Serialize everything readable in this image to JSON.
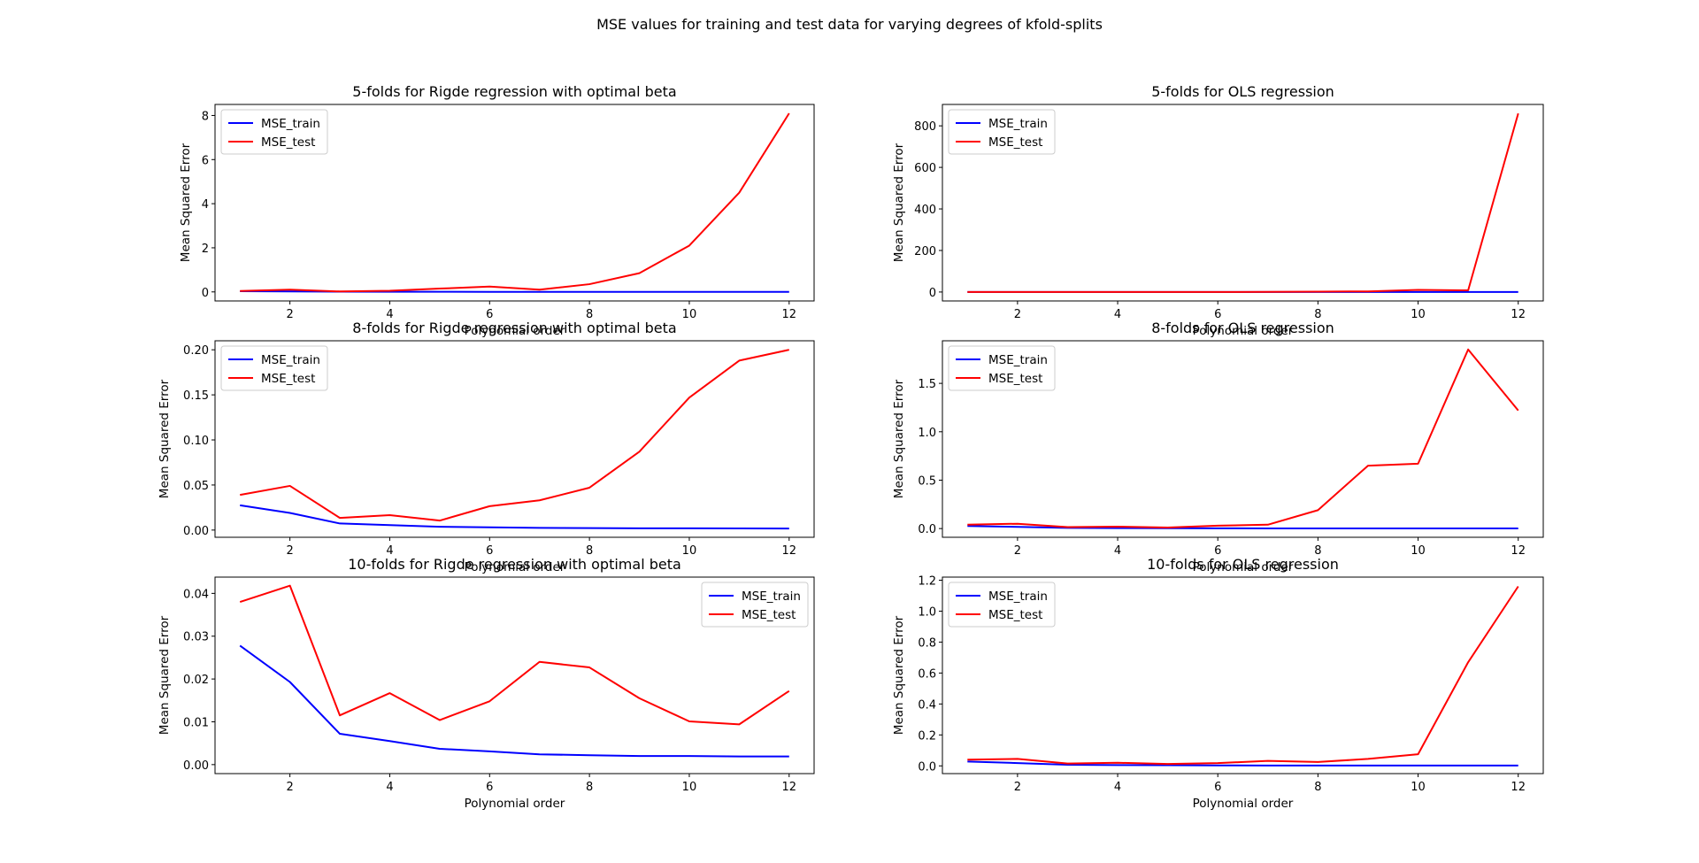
{
  "figure": {
    "suptitle": "MSE values for training and test data for varying degrees of kfold-splits"
  },
  "colors": {
    "train": "#0000ff",
    "test": "#ff0000"
  },
  "chart_data": [
    {
      "type": "line",
      "title": "5-folds for Rigde regression with optimal beta",
      "xlabel": "Polynomial order",
      "ylabel": "Mean Squared Error",
      "x": [
        1,
        2,
        3,
        4,
        5,
        6,
        7,
        8,
        9,
        10,
        11,
        12
      ],
      "xlim": [
        0.5,
        12.5
      ],
      "ylim": [
        -0.41,
        8.5
      ],
      "xticks": [
        2,
        4,
        6,
        8,
        10,
        12
      ],
      "yticks": [
        0,
        2,
        4,
        6,
        8
      ],
      "ytick_labels": [
        "0",
        "2",
        "4",
        "6",
        "8"
      ],
      "legend_loc": "upper left",
      "series": [
        {
          "name": "MSE_train",
          "color": "#0000ff",
          "values": [
            0.03,
            0.02,
            0.01,
            0.006,
            0.004,
            0.003,
            0.002,
            0.002,
            0.002,
            0.002,
            0.002,
            0.002
          ]
        },
        {
          "name": "MSE_test",
          "color": "#ff0000",
          "values": [
            0.04,
            0.1,
            0.02,
            0.05,
            0.15,
            0.24,
            0.1,
            0.35,
            0.85,
            2.1,
            4.5,
            8.1
          ]
        }
      ]
    },
    {
      "type": "line",
      "title": "5-folds for OLS regression",
      "xlabel": "Polynomial order",
      "ylabel": "Mean Squared Error",
      "x": [
        1,
        2,
        3,
        4,
        5,
        6,
        7,
        8,
        9,
        10,
        11,
        12
      ],
      "xlim": [
        0.5,
        12.5
      ],
      "ylim": [
        -43,
        903
      ],
      "xticks": [
        2,
        4,
        6,
        8,
        10,
        12
      ],
      "yticks": [
        0,
        200,
        400,
        600,
        800
      ],
      "ytick_labels": [
        "0",
        "200",
        "400",
        "600",
        "800"
      ],
      "legend_loc": "upper left",
      "series": [
        {
          "name": "MSE_train",
          "color": "#0000ff",
          "values": [
            0.03,
            0.02,
            0.01,
            0.006,
            0.004,
            0.003,
            0.002,
            0.002,
            0.002,
            0.002,
            0.002,
            0.002
          ]
        },
        {
          "name": "MSE_test",
          "color": "#ff0000",
          "values": [
            0.04,
            0.05,
            0.02,
            0.03,
            0.02,
            0.1,
            0.5,
            2,
            3,
            10,
            8,
            860
          ]
        }
      ]
    },
    {
      "type": "line",
      "title": "8-folds for Rigde regression with optimal beta",
      "xlabel": "Polynomial order",
      "ylabel": "Mean Squared Error",
      "x": [
        1,
        2,
        3,
        4,
        5,
        6,
        7,
        8,
        9,
        10,
        11,
        12
      ],
      "xlim": [
        0.5,
        12.5
      ],
      "ylim": [
        -0.008,
        0.21
      ],
      "xticks": [
        2,
        4,
        6,
        8,
        10,
        12
      ],
      "yticks": [
        0,
        0.05,
        0.1,
        0.15,
        0.2
      ],
      "ytick_labels": [
        "0.00",
        "0.05",
        "0.10",
        "0.15",
        "0.20"
      ],
      "legend_loc": "upper left",
      "series": [
        {
          "name": "MSE_train",
          "color": "#0000ff",
          "values": [
            0.0275,
            0.019,
            0.0073,
            0.0055,
            0.0037,
            0.0031,
            0.0024,
            0.0022,
            0.002,
            0.0019,
            0.0018,
            0.0017
          ]
        },
        {
          "name": "MSE_test",
          "color": "#ff0000",
          "values": [
            0.039,
            0.049,
            0.0135,
            0.0165,
            0.0105,
            0.0265,
            0.033,
            0.047,
            0.087,
            0.147,
            0.188,
            0.2
          ]
        }
      ]
    },
    {
      "type": "line",
      "title": "8-folds for OLS regression",
      "xlabel": "Polynomial order",
      "ylabel": "Mean Squared Error",
      "x": [
        1,
        2,
        3,
        4,
        5,
        6,
        7,
        8,
        9,
        10,
        11,
        12
      ],
      "xlim": [
        0.5,
        12.5
      ],
      "ylim": [
        -0.09,
        1.94
      ],
      "xticks": [
        2,
        4,
        6,
        8,
        10,
        12
      ],
      "yticks": [
        0,
        0.5,
        1,
        1.5
      ],
      "ytick_labels": [
        "0.0",
        "0.5",
        "1.0",
        "1.5"
      ],
      "legend_loc": "upper left",
      "series": [
        {
          "name": "MSE_train",
          "color": "#0000ff",
          "values": [
            0.027,
            0.018,
            0.007,
            0.005,
            0.004,
            0.003,
            0.002,
            0.002,
            0.002,
            0.002,
            0.002,
            0.002
          ]
        },
        {
          "name": "MSE_test",
          "color": "#ff0000",
          "values": [
            0.04,
            0.05,
            0.015,
            0.02,
            0.01,
            0.03,
            0.04,
            0.19,
            0.65,
            0.67,
            1.85,
            1.22
          ]
        }
      ]
    },
    {
      "type": "line",
      "title": "10-folds for Rigde regression with optimal beta",
      "xlabel": "Polynomial order",
      "ylabel": "Mean Squared Error",
      "x": [
        1,
        2,
        3,
        4,
        5,
        6,
        7,
        8,
        9,
        10,
        11,
        12
      ],
      "xlim": [
        0.5,
        12.5
      ],
      "ylim": [
        -0.0021,
        0.0438
      ],
      "xticks": [
        2,
        4,
        6,
        8,
        10,
        12
      ],
      "yticks": [
        0,
        0.01,
        0.02,
        0.03,
        0.04
      ],
      "ytick_labels": [
        "0.00",
        "0.01",
        "0.02",
        "0.03",
        "0.04"
      ],
      "legend_loc": "upper right",
      "series": [
        {
          "name": "MSE_train",
          "color": "#0000ff",
          "values": [
            0.0278,
            0.0193,
            0.0072,
            0.0055,
            0.0037,
            0.0031,
            0.0024,
            0.0022,
            0.002,
            0.002,
            0.0019,
            0.0019
          ]
        },
        {
          "name": "MSE_test",
          "color": "#ff0000",
          "values": [
            0.038,
            0.0418,
            0.0115,
            0.0167,
            0.0104,
            0.0148,
            0.024,
            0.0227,
            0.0155,
            0.0101,
            0.0094,
            0.0172
          ]
        }
      ]
    },
    {
      "type": "line",
      "title": "10-folds for OLS regression",
      "xlabel": "Polynomial order",
      "ylabel": "Mean Squared Error",
      "x": [
        1,
        2,
        3,
        4,
        5,
        6,
        7,
        8,
        9,
        10,
        11,
        12
      ],
      "xlim": [
        0.5,
        12.5
      ],
      "ylim": [
        -0.05,
        1.22
      ],
      "xticks": [
        2,
        4,
        6,
        8,
        10,
        12
      ],
      "yticks": [
        0,
        0.2,
        0.4,
        0.6,
        0.8,
        1,
        1.2
      ],
      "ytick_labels": [
        "0.0",
        "0.2",
        "0.4",
        "0.6",
        "0.8",
        "1.0",
        "1.2"
      ],
      "legend_loc": "upper left",
      "series": [
        {
          "name": "MSE_train",
          "color": "#0000ff",
          "values": [
            0.028,
            0.018,
            0.007,
            0.005,
            0.004,
            0.003,
            0.002,
            0.002,
            0.002,
            0.002,
            0.002,
            0.002
          ]
        },
        {
          "name": "MSE_test",
          "color": "#ff0000",
          "values": [
            0.04,
            0.045,
            0.015,
            0.02,
            0.012,
            0.018,
            0.032,
            0.025,
            0.045,
            0.075,
            0.67,
            1.16
          ]
        }
      ]
    }
  ]
}
